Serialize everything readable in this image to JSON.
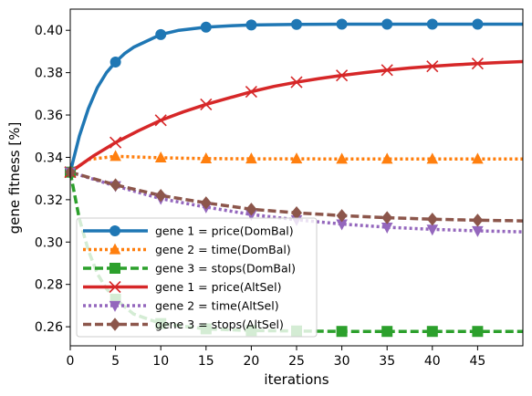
{
  "chart_data": {
    "type": "line",
    "title": "",
    "xlabel": "iterations",
    "ylabel": "gene fitness [%]",
    "xlim": [
      0,
      50
    ],
    "ylim": [
      0.251,
      0.41
    ],
    "x_ticks": [
      0,
      5,
      10,
      15,
      20,
      25,
      30,
      35,
      40,
      45
    ],
    "x_tick_labels": [
      "0",
      "5",
      "10",
      "15",
      "20",
      "25",
      "30",
      "35",
      "40",
      "45"
    ],
    "y_ticks": [
      0.26,
      0.28,
      0.3,
      0.32,
      0.34,
      0.36,
      0.38,
      0.4
    ],
    "y_tick_labels": [
      "0.26",
      "0.28",
      "0.30",
      "0.32",
      "0.34",
      "0.36",
      "0.38",
      "0.40"
    ],
    "grid": false,
    "legend_position": "lower-left",
    "marker_x": [
      0,
      5,
      10,
      15,
      20,
      25,
      30,
      35,
      40,
      45
    ],
    "series": [
      {
        "name": "gene 1 = price(DomBal)",
        "color": "#1f77b4",
        "line_style": "solid",
        "marker": "circle",
        "x": [
          0,
          1,
          2,
          3,
          4,
          5,
          6,
          7,
          8,
          10,
          12,
          15,
          18,
          20,
          25,
          30,
          35,
          40,
          45,
          50
        ],
        "y": [
          0.333,
          0.35,
          0.363,
          0.373,
          0.38,
          0.385,
          0.389,
          0.392,
          0.394,
          0.398,
          0.4,
          0.4015,
          0.4022,
          0.4025,
          0.4028,
          0.4029,
          0.4029,
          0.4029,
          0.4029,
          0.4029
        ]
      },
      {
        "name": "gene 2 = time(DomBal)",
        "color": "#ff7f0e",
        "line_style": "dotted",
        "marker": "triangle-up",
        "x": [
          0,
          2,
          5,
          10,
          15,
          20,
          25,
          30,
          35,
          40,
          45,
          50
        ],
        "y": [
          0.333,
          0.339,
          0.3405,
          0.3398,
          0.3394,
          0.3393,
          0.3393,
          0.3392,
          0.3392,
          0.3392,
          0.3392,
          0.3392
        ]
      },
      {
        "name": "gene 3 = stops(DomBal)",
        "color": "#2ca02c",
        "line_style": "dashed",
        "marker": "square",
        "x": [
          0,
          1,
          2,
          3,
          4,
          5,
          7,
          10,
          15,
          20,
          25,
          30,
          35,
          40,
          45,
          50
        ],
        "y": [
          0.333,
          0.311,
          0.296,
          0.285,
          0.278,
          0.273,
          0.266,
          0.2615,
          0.259,
          0.2582,
          0.258,
          0.2578,
          0.2578,
          0.2578,
          0.2578,
          0.2578
        ]
      },
      {
        "name": "gene 1 = price(AltSel)",
        "color": "#d62728",
        "line_style": "solid",
        "marker": "x",
        "x": [
          0,
          2.5,
          5,
          7.5,
          10,
          12.5,
          15,
          17.5,
          20,
          22.5,
          25,
          27.5,
          30,
          32.5,
          35,
          37.5,
          40,
          42.5,
          45,
          47.5,
          50
        ],
        "y": [
          0.333,
          0.3405,
          0.347,
          0.3525,
          0.3575,
          0.3615,
          0.365,
          0.368,
          0.371,
          0.3735,
          0.3755,
          0.3772,
          0.3787,
          0.38,
          0.3812,
          0.3822,
          0.383,
          0.3837,
          0.3843,
          0.3848,
          0.3852
        ]
      },
      {
        "name": "gene 2 = time(AltSel)",
        "color": "#9467bd",
        "line_style": "dotted",
        "marker": "triangle-down",
        "x": [
          0,
          5,
          10,
          15,
          20,
          25,
          30,
          35,
          40,
          45,
          50
        ],
        "y": [
          0.333,
          0.3265,
          0.3205,
          0.3165,
          0.313,
          0.3105,
          0.3085,
          0.307,
          0.306,
          0.3053,
          0.3048
        ]
      },
      {
        "name": "gene 3 = stops(AltSel)",
        "color": "#8c564b",
        "line_style": "dashed",
        "marker": "diamond",
        "x": [
          0,
          5,
          10,
          15,
          20,
          25,
          30,
          35,
          40,
          45,
          50
        ],
        "y": [
          0.333,
          0.327,
          0.322,
          0.3185,
          0.3155,
          0.3138,
          0.3125,
          0.3115,
          0.3108,
          0.3103,
          0.31
        ]
      }
    ]
  }
}
